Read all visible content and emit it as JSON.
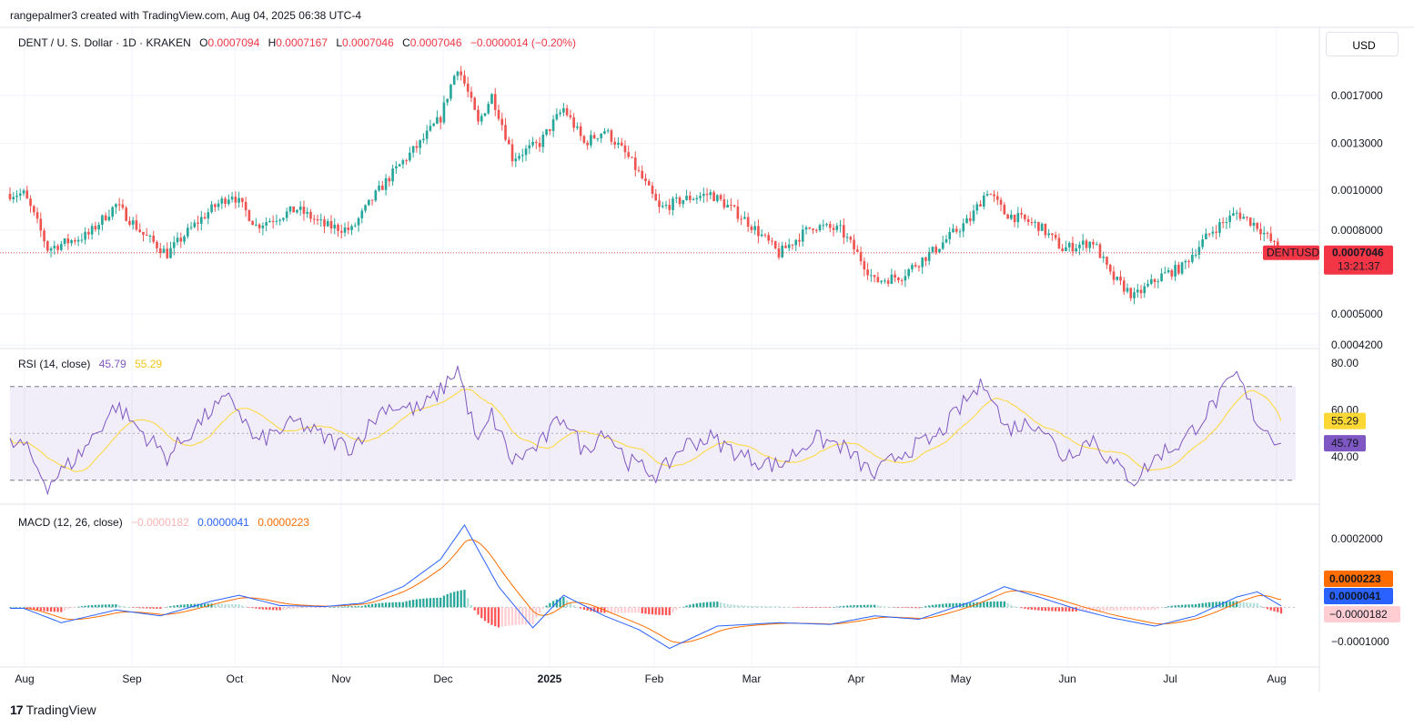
{
  "topbar": {
    "text": "rangepalmer3 created with TradingView.com, Aug 04, 2025 06:38 UTC-4"
  },
  "legend": {
    "symbol": "DENT / U. S. Dollar · 1D · KRAKEN",
    "o_label": "O",
    "o": "0.0007094",
    "h_label": "H",
    "h": "0.0007167",
    "l_label": "L",
    "l": "0.0007046",
    "c_label": "C",
    "c": "0.0007046",
    "change": "−0.0000014 (−0.20%)"
  },
  "currency_button": "USD",
  "price_badge": {
    "symbol": "DENTUSD",
    "price": "0.0007046",
    "countdown": "13:21:37"
  },
  "rsi_legend": {
    "name": "RSI (14, close)",
    "rsi": "45.79",
    "ma": "55.29"
  },
  "macd_legend": {
    "name": "MACD (12, 26, close)",
    "hist": "−0.0000182",
    "macd": "0.0000041",
    "signal": "0.0000223"
  },
  "footer": {
    "logo": "17",
    "brand": "TradingView"
  },
  "colors": {
    "up": "#26a69a",
    "down": "#ef5350",
    "rsi": "#7e57c2",
    "rsi_ma": "#fdd835",
    "macd": "#2962ff",
    "signal": "#ff6d00",
    "rsi_band": "#7e57c2"
  },
  "chart_data": {
    "type": "candlestick",
    "x_labels": [
      "Aug",
      "Sep",
      "Oct",
      "Nov",
      "Dec",
      "2025",
      "Feb",
      "Mar",
      "Apr",
      "May",
      "Jun",
      "Jul",
      "Aug"
    ],
    "price_axis": {
      "ticks": [
        "0.0017000",
        "0.0013000",
        "0.0010000",
        "0.0008000",
        "0.0005000",
        "0.0004200"
      ],
      "scale": "log"
    },
    "rsi_axis": {
      "ticks": [
        "80.00",
        "60.00",
        "40.00"
      ],
      "upper_band": 70,
      "lower_band": 30
    },
    "macd_axis": {
      "ticks": [
        "0.0002000",
        "−0.0001000"
      ]
    },
    "price_keypoints": [
      [
        "2024-08-01",
        0.00098
      ],
      [
        "2024-08-08",
        0.00072
      ],
      [
        "2024-08-20",
        0.00078
      ],
      [
        "2024-08-28",
        0.00092
      ],
      [
        "2024-09-05",
        0.00078
      ],
      [
        "2024-09-12",
        0.0007
      ],
      [
        "2024-09-25",
        0.0009
      ],
      [
        "2024-10-01",
        0.00098
      ],
      [
        "2024-10-08",
        0.00082
      ],
      [
        "2024-10-20",
        0.0009
      ],
      [
        "2024-10-28",
        0.00082
      ],
      [
        "2024-11-05",
        0.0008
      ],
      [
        "2024-11-15",
        0.00105
      ],
      [
        "2024-11-25",
        0.0013
      ],
      [
        "2024-12-01",
        0.0015
      ],
      [
        "2024-12-06",
        0.002
      ],
      [
        "2024-12-12",
        0.00145
      ],
      [
        "2024-12-16",
        0.0017
      ],
      [
        "2024-12-22",
        0.0012
      ],
      [
        "2024-12-30",
        0.0013
      ],
      [
        "2025-01-06",
        0.00158
      ],
      [
        "2025-01-12",
        0.0013
      ],
      [
        "2025-01-18",
        0.0014
      ],
      [
        "2025-01-25",
        0.0012
      ],
      [
        "2025-02-03",
        0.0009
      ],
      [
        "2025-02-10",
        0.00095
      ],
      [
        "2025-02-18",
        0.00098
      ],
      [
        "2025-02-28",
        0.00085
      ],
      [
        "2025-03-10",
        0.0007
      ],
      [
        "2025-03-20",
        0.00082
      ],
      [
        "2025-03-28",
        0.0008
      ],
      [
        "2025-04-07",
        0.0006
      ],
      [
        "2025-04-15",
        0.00062
      ],
      [
        "2025-04-25",
        0.00072
      ],
      [
        "2025-05-05",
        0.00085
      ],
      [
        "2025-05-10",
        0.001
      ],
      [
        "2025-05-15",
        0.00088
      ],
      [
        "2025-05-25",
        0.00082
      ],
      [
        "2025-06-01",
        0.00072
      ],
      [
        "2025-06-10",
        0.00075
      ],
      [
        "2025-06-15",
        0.00062
      ],
      [
        "2025-06-22",
        0.00055
      ],
      [
        "2025-06-30",
        0.00062
      ],
      [
        "2025-07-06",
        0.00065
      ],
      [
        "2025-07-15",
        0.0008
      ],
      [
        "2025-07-22",
        0.00088
      ],
      [
        "2025-07-28",
        0.00082
      ],
      [
        "2025-08-04",
        0.0007
      ]
    ],
    "rsi_keypoints": [
      [
        "2024-08-01",
        45
      ],
      [
        "2024-08-08",
        28
      ],
      [
        "2024-08-18",
        42
      ],
      [
        "2024-08-28",
        62
      ],
      [
        "2024-09-05",
        50
      ],
      [
        "2024-09-12",
        40
      ],
      [
        "2024-09-25",
        60
      ],
      [
        "2024-10-01",
        65
      ],
      [
        "2024-10-08",
        46
      ],
      [
        "2024-10-20",
        55
      ],
      [
        "2024-10-28",
        48
      ],
      [
        "2024-11-05",
        44
      ],
      [
        "2024-11-15",
        62
      ],
      [
        "2024-11-25",
        60
      ],
      [
        "2024-12-01",
        68
      ],
      [
        "2024-12-06",
        78
      ],
      [
        "2024-12-12",
        45
      ],
      [
        "2024-12-16",
        58
      ],
      [
        "2024-12-22",
        38
      ],
      [
        "2024-12-30",
        45
      ],
      [
        "2025-01-06",
        58
      ],
      [
        "2025-01-12",
        42
      ],
      [
        "2025-01-18",
        52
      ],
      [
        "2025-01-25",
        38
      ],
      [
        "2025-02-03",
        32
      ],
      [
        "2025-02-10",
        45
      ],
      [
        "2025-02-18",
        48
      ],
      [
        "2025-02-28",
        40
      ],
      [
        "2025-03-10",
        36
      ],
      [
        "2025-03-20",
        48
      ],
      [
        "2025-03-28",
        45
      ],
      [
        "2025-04-07",
        32
      ],
      [
        "2025-04-15",
        42
      ],
      [
        "2025-04-25",
        48
      ],
      [
        "2025-05-05",
        66
      ],
      [
        "2025-05-10",
        72
      ],
      [
        "2025-05-15",
        52
      ],
      [
        "2025-05-25",
        55
      ],
      [
        "2025-06-01",
        40
      ],
      [
        "2025-06-10",
        48
      ],
      [
        "2025-06-15",
        38
      ],
      [
        "2025-06-22",
        30
      ],
      [
        "2025-06-30",
        42
      ],
      [
        "2025-07-06",
        46
      ],
      [
        "2025-07-15",
        62
      ],
      [
        "2025-07-22",
        75
      ],
      [
        "2025-07-28",
        55
      ],
      [
        "2025-08-04",
        45.79
      ]
    ],
    "macd_keypoints": [
      [
        "2024-08-01",
        -3e-06
      ],
      [
        "2024-08-12",
        -4.5e-05
      ],
      [
        "2024-08-28",
        -8e-06
      ],
      [
        "2024-09-10",
        -2.5e-05
      ],
      [
        "2024-09-25",
        1.8e-05
      ],
      [
        "2024-10-03",
        3.5e-05
      ],
      [
        "2024-10-15",
        5e-06
      ],
      [
        "2024-10-28",
        2e-06
      ],
      [
        "2024-11-08",
        1.2e-05
      ],
      [
        "2024-11-20",
        6e-05
      ],
      [
        "2024-12-01",
        0.00014
      ],
      [
        "2024-12-08",
        0.00024
      ],
      [
        "2024-12-18",
        6e-05
      ],
      [
        "2024-12-28",
        -6e-05
      ],
      [
        "2025-01-06",
        3.5e-05
      ],
      [
        "2025-01-18",
        -2.5e-05
      ],
      [
        "2025-01-28",
        -6.5e-05
      ],
      [
        "2025-02-06",
        -0.00012
      ],
      [
        "2025-02-20",
        -5.5e-05
      ],
      [
        "2025-03-10",
        -4.5e-05
      ],
      [
        "2025-03-25",
        -5e-05
      ],
      [
        "2025-04-07",
        -2.5e-05
      ],
      [
        "2025-04-20",
        -3.5e-05
      ],
      [
        "2025-05-05",
        1.5e-05
      ],
      [
        "2025-05-15",
        6e-05
      ],
      [
        "2025-05-25",
        3e-05
      ],
      [
        "2025-06-05",
        -5e-06
      ],
      [
        "2025-06-15",
        -3e-05
      ],
      [
        "2025-06-28",
        -5.5e-05
      ],
      [
        "2025-07-10",
        -2.5e-05
      ],
      [
        "2025-07-22",
        3e-05
      ],
      [
        "2025-07-28",
        4.5e-05
      ],
      [
        "2025-08-04",
        4.1e-06
      ]
    ],
    "last_price": 0.0007046,
    "rsi_last": 45.79,
    "rsi_ma_last": 55.29,
    "macd_last": 4.1e-06,
    "signal_last": 2.23e-05,
    "hist_last": -1.82e-05
  }
}
